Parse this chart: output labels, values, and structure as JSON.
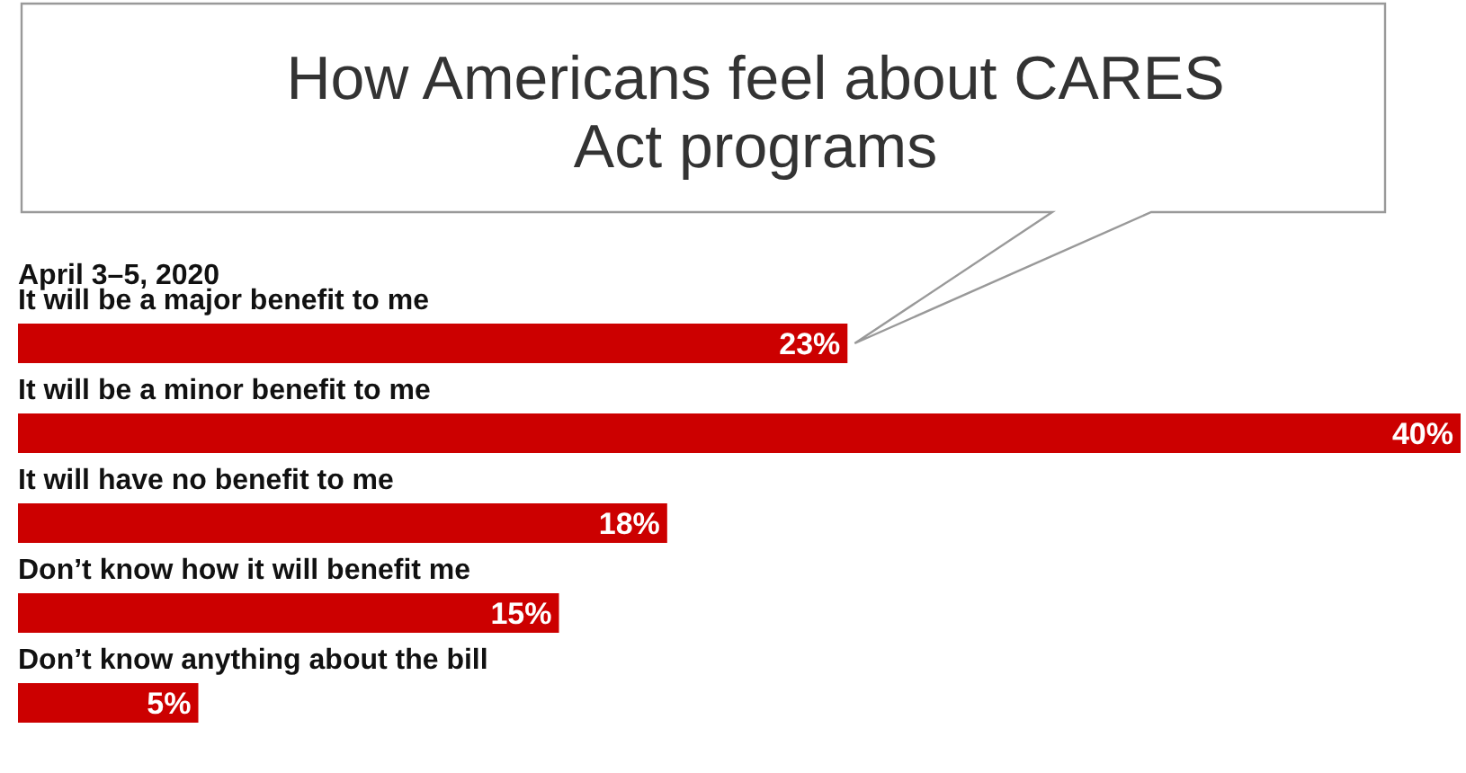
{
  "chart_data": {
    "type": "bar",
    "orientation": "horizontal",
    "title": "How Americans feel about CARES Act programs",
    "subtitle": "April 3–5, 2020",
    "categories": [
      "It will be a major benefit to me",
      "It will be a minor benefit to me",
      "It will have no benefit to me",
      "Don’t know how it will benefit me",
      "Don’t know anything about the bill"
    ],
    "values": [
      23,
      40,
      18,
      15,
      5
    ],
    "value_labels": [
      "23%",
      "40%",
      "18%",
      "15%",
      "5%"
    ],
    "color": "#cc0000"
  }
}
